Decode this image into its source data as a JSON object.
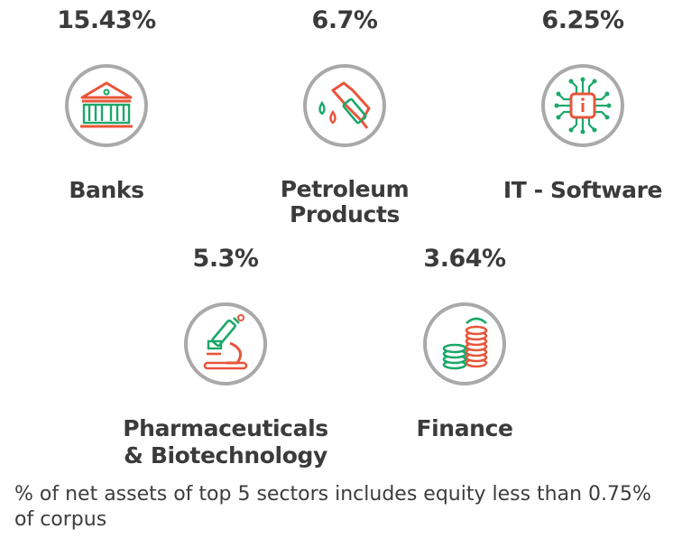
{
  "sectors": [
    {
      "percent": "15.43%",
      "name": "Banks",
      "icon": "bank-icon"
    },
    {
      "percent": "6.7%",
      "name": "Petroleum Products",
      "icon": "fuel-nozzle-icon"
    },
    {
      "percent": "6.25%",
      "name": "IT - Software",
      "icon": "chip-icon"
    },
    {
      "percent": "5.3%",
      "name": "Pharmaceuticals & Biotechnology",
      "icon": "microscope-icon"
    },
    {
      "percent": "3.64%",
      "name": "Finance",
      "icon": "coins-icon"
    }
  ],
  "footnote": "% of net assets of top 5 sectors includes equity less than 0.75% of corpus",
  "colors": {
    "accent_orange": "#e8553a",
    "accent_green": "#1aa86a",
    "ring_gray": "#a9a9a9",
    "text": "#3b3b3b"
  }
}
